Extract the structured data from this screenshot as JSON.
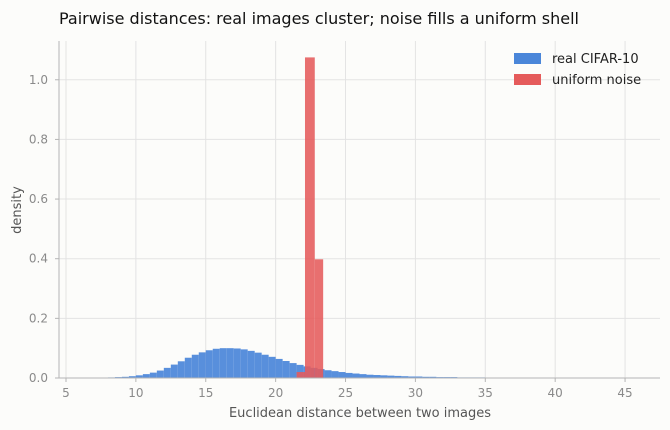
{
  "chart_data": {
    "type": "histogram",
    "title": "Pairwise distances: real images cluster; noise fills a uniform shell",
    "xlabel": "Euclidean distance between two images",
    "ylabel": "density",
    "xlim": [
      4.5,
      47.5
    ],
    "ylim": [
      0,
      1.13
    ],
    "xticks": [
      5,
      10,
      15,
      20,
      25,
      30,
      35,
      40,
      45
    ],
    "yticks": [
      0.0,
      0.2,
      0.4,
      0.6,
      0.8,
      1.0
    ],
    "grid": true,
    "legend_position": "top-right",
    "series": [
      {
        "name": "real CIFAR-10",
        "color": "#4a86d9",
        "bin_edges": [
          8.0,
          8.5,
          9.0,
          9.5,
          10.0,
          10.5,
          11.0,
          11.5,
          12.0,
          12.5,
          13.0,
          13.5,
          14.0,
          14.5,
          15.0,
          15.5,
          16.0,
          16.5,
          17.0,
          17.5,
          18.0,
          18.5,
          19.0,
          19.5,
          20.0,
          20.5,
          21.0,
          21.5,
          22.0,
          22.5,
          23.0,
          23.5,
          24.0,
          24.5,
          25.0,
          25.5,
          26.0,
          26.5,
          27.0,
          27.5,
          28.0,
          28.5,
          29.0,
          29.5,
          30.0,
          30.5,
          31.0,
          31.5,
          32.0,
          32.5,
          33.0,
          33.5,
          34.0,
          34.5,
          35.0,
          35.5
        ],
        "values": [
          0.002,
          0.003,
          0.004,
          0.006,
          0.009,
          0.013,
          0.018,
          0.025,
          0.034,
          0.045,
          0.056,
          0.068,
          0.078,
          0.086,
          0.093,
          0.098,
          0.1,
          0.1,
          0.099,
          0.096,
          0.091,
          0.085,
          0.078,
          0.071,
          0.064,
          0.057,
          0.05,
          0.044,
          0.039,
          0.034,
          0.03,
          0.026,
          0.023,
          0.02,
          0.017,
          0.015,
          0.013,
          0.011,
          0.01,
          0.009,
          0.008,
          0.007,
          0.006,
          0.005,
          0.005,
          0.004,
          0.004,
          0.003,
          0.003,
          0.003,
          0.002,
          0.002,
          0.002,
          0.002,
          0.001
        ]
      },
      {
        "name": "uniform noise",
        "color": "#e55b5b",
        "bin_edges": [
          21.5,
          22.1,
          22.8,
          23.4
        ],
        "values": [
          0.02,
          1.075,
          0.398
        ]
      }
    ]
  }
}
